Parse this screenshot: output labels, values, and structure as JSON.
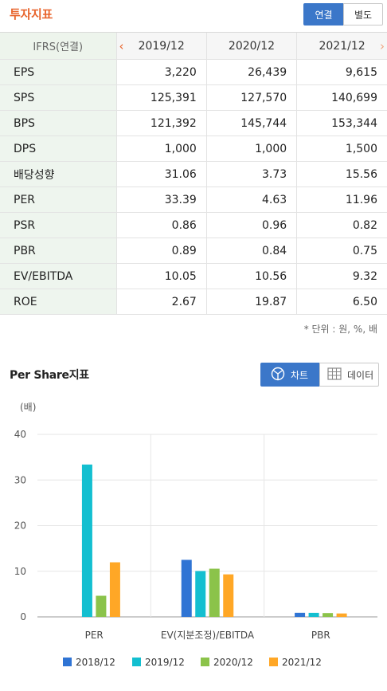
{
  "header": {
    "title": "투자지표",
    "tabs": [
      "연결",
      "별도"
    ]
  },
  "table": {
    "corner_label": "IFRS(연결)",
    "columns": [
      "2019/12",
      "2020/12",
      "2021/12"
    ],
    "rows": [
      {
        "label": "EPS",
        "values": [
          "3,220",
          "26,439",
          "9,615"
        ]
      },
      {
        "label": "SPS",
        "values": [
          "125,391",
          "127,570",
          "140,699"
        ]
      },
      {
        "label": "BPS",
        "values": [
          "121,392",
          "145,744",
          "153,344"
        ]
      },
      {
        "label": "DPS",
        "values": [
          "1,000",
          "1,000",
          "1,500"
        ]
      },
      {
        "label": "배당성향",
        "values": [
          "31.06",
          "3.73",
          "15.56"
        ]
      },
      {
        "label": "PER",
        "values": [
          "33.39",
          "4.63",
          "11.96"
        ]
      },
      {
        "label": "PSR",
        "values": [
          "0.86",
          "0.96",
          "0.82"
        ]
      },
      {
        "label": "PBR",
        "values": [
          "0.89",
          "0.84",
          "0.75"
        ]
      },
      {
        "label": "EV/EBITDA",
        "values": [
          "10.05",
          "10.56",
          "9.32"
        ]
      },
      {
        "label": "ROE",
        "values": [
          "2.67",
          "19.87",
          "6.50"
        ]
      }
    ],
    "unit_note": "* 단위 : 원, %, 배"
  },
  "chart_section": {
    "title": "Per Share지표",
    "chart_button": "차트",
    "data_button": "데이터"
  },
  "chart_data": {
    "type": "bar",
    "unit_label": "(배)",
    "categories": [
      "PER",
      "EV(지분조정)/EBITDA",
      "PBR"
    ],
    "ylim": [
      0,
      40
    ],
    "yticks": [
      0,
      10,
      20,
      30,
      40
    ],
    "grid": true,
    "legend_position": "bottom",
    "series": [
      {
        "name": "2018/12",
        "color": "#2f74d4",
        "values": [
          null,
          12.5,
          0.9
        ]
      },
      {
        "name": "2019/12",
        "color": "#13bfd0",
        "values": [
          33.39,
          10.05,
          0.89
        ]
      },
      {
        "name": "2020/12",
        "color": "#8bc34a",
        "values": [
          4.63,
          10.56,
          0.84
        ]
      },
      {
        "name": "2021/12",
        "color": "#ffa726",
        "values": [
          11.96,
          9.32,
          0.75
        ]
      }
    ]
  }
}
